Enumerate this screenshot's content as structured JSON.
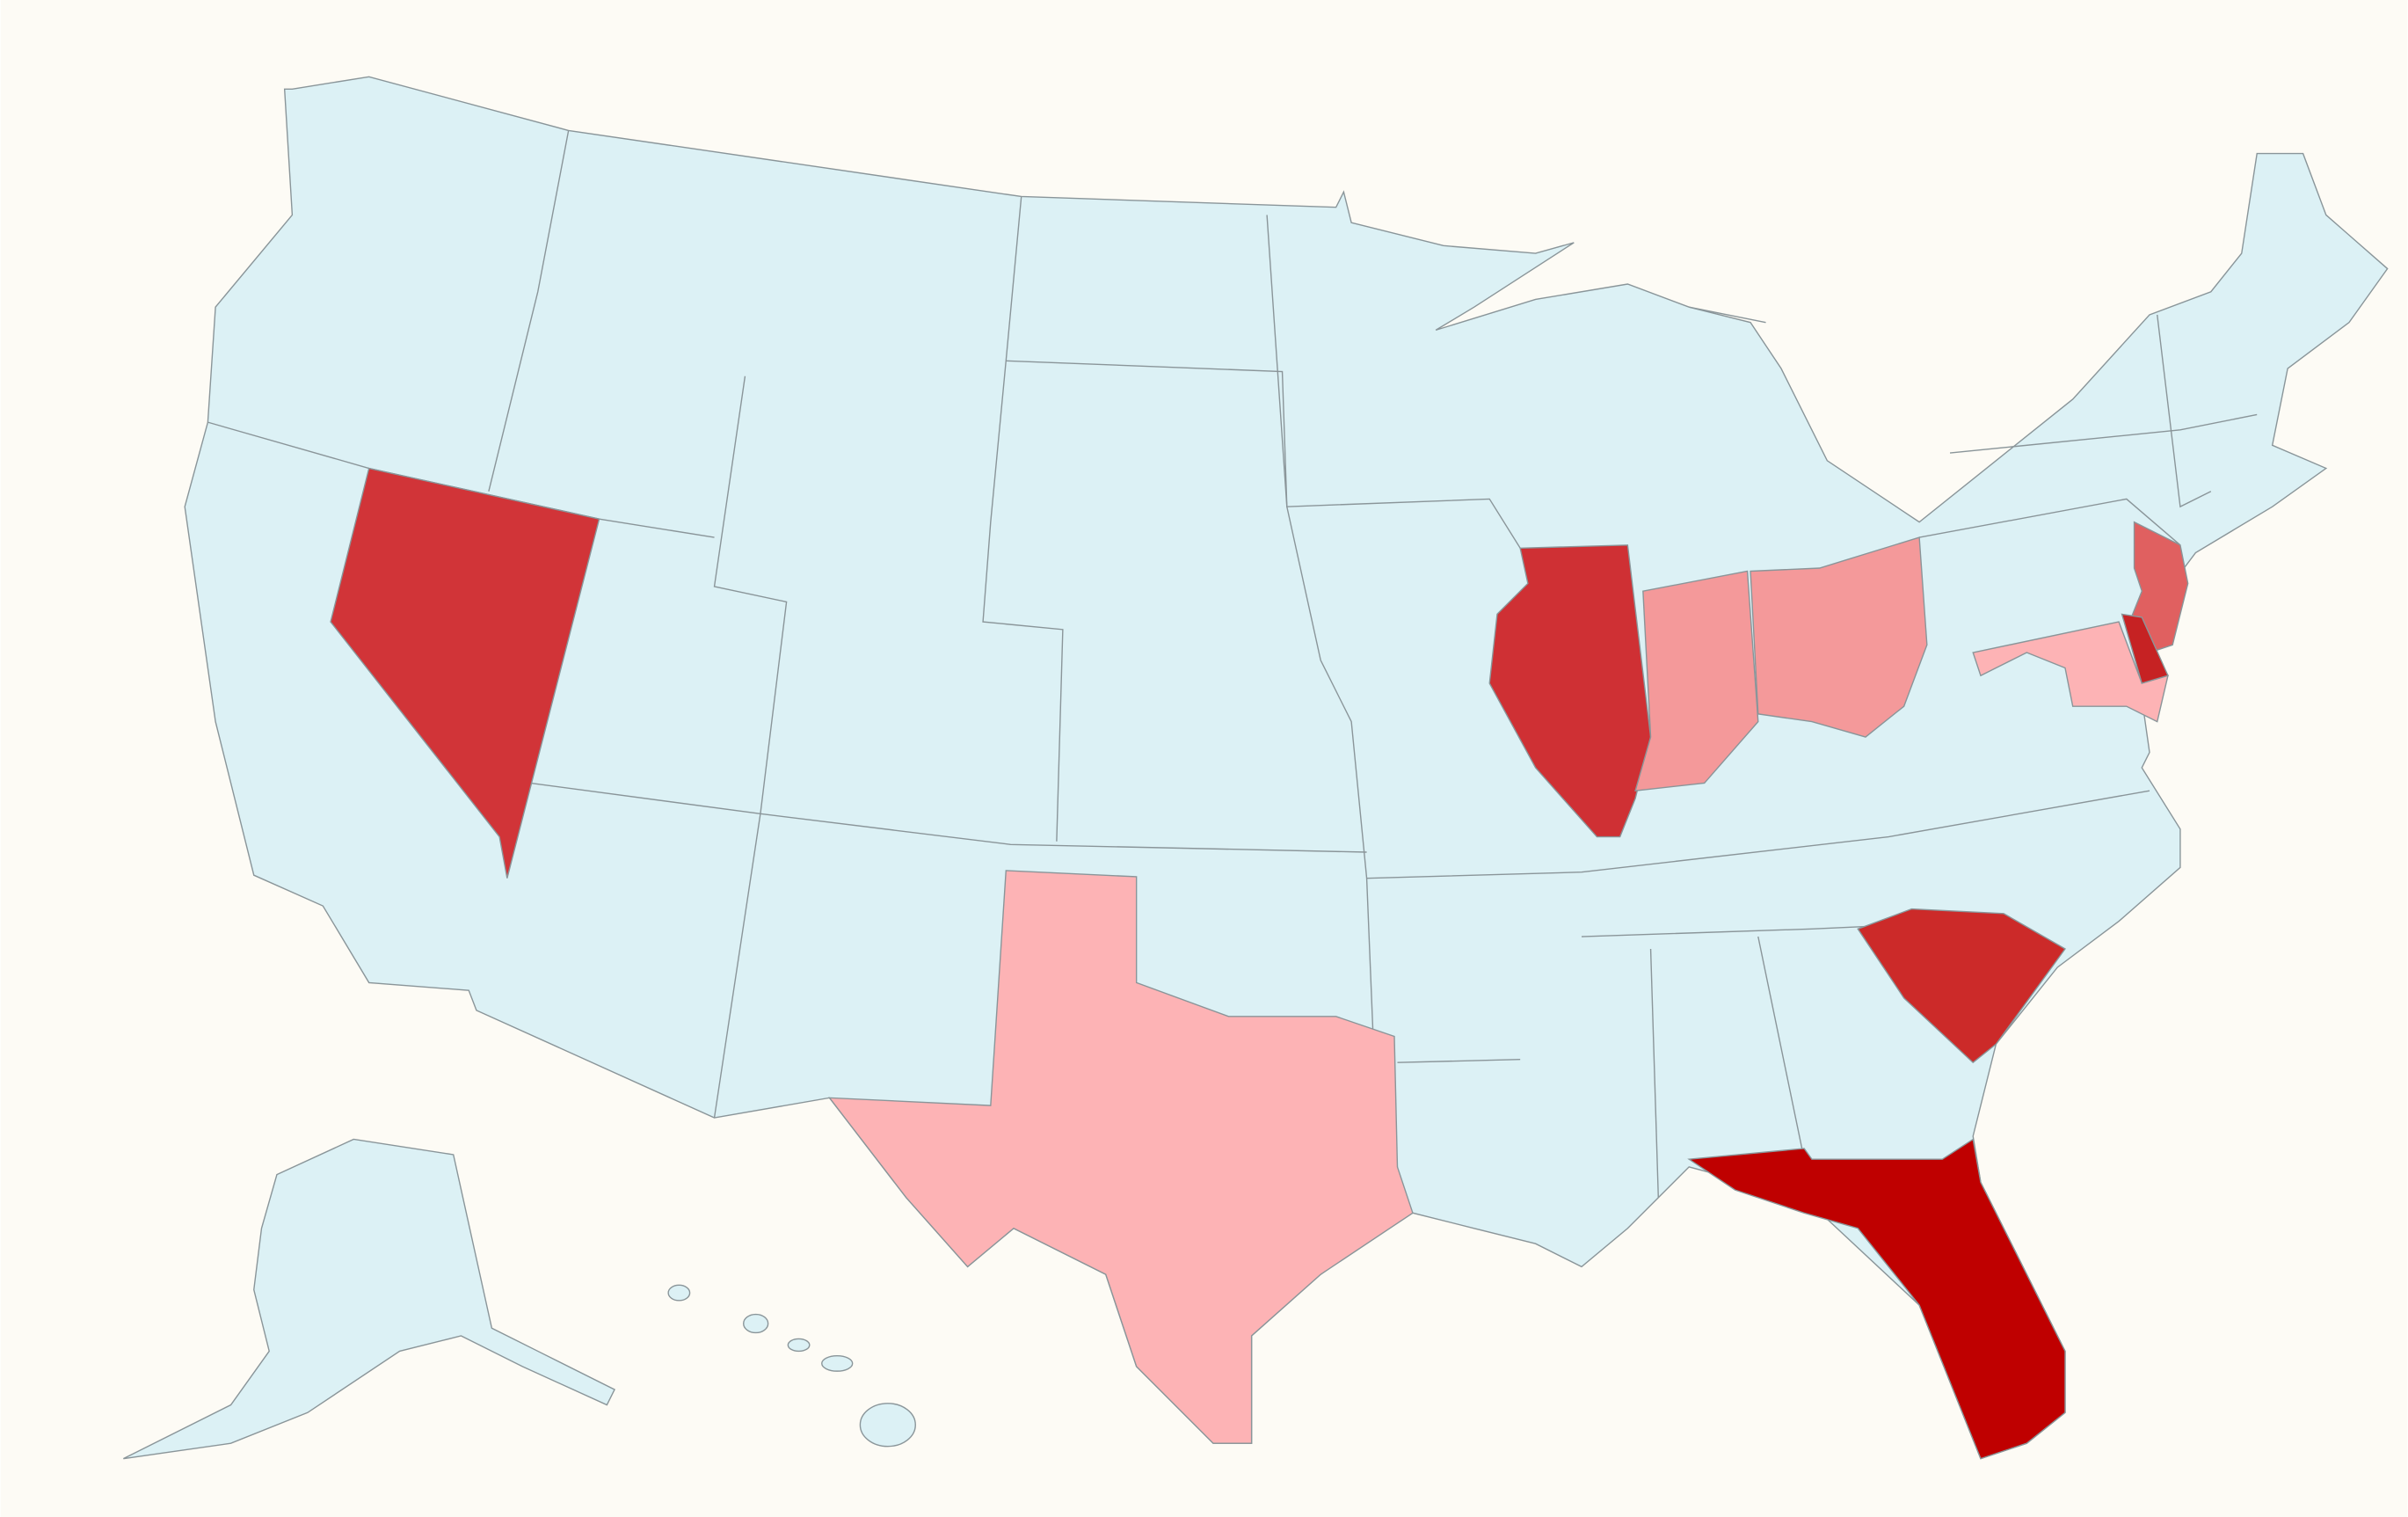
{
  "map": {
    "background": "#fdfbf5",
    "base_color": "#dcf1f5",
    "border_color": "#8a9599",
    "regions": [
      {
        "color": "#d13438"
      },
      {
        "color": "#cf3034"
      },
      {
        "color": "#f4999a"
      },
      {
        "color": "#f4999a"
      },
      {
        "color": "#fdb3b5"
      },
      {
        "color": "#cc2a29"
      },
      {
        "color": "#bf0000"
      },
      {
        "color": "#e06060"
      },
      {
        "color": "#fdb3b5"
      },
      {
        "color": "#c62223"
      }
    ]
  }
}
